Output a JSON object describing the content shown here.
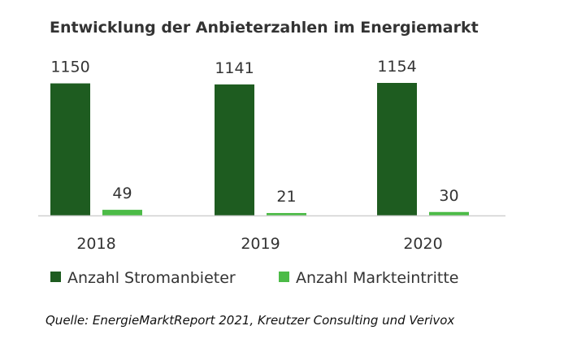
{
  "chart_data": {
    "type": "bar",
    "title": "Entwicklung der Anbieterzahlen im Energiemarkt",
    "categories": [
      "2018",
      "2019",
      "2020"
    ],
    "series": [
      {
        "name": "Anzahl Stromanbieter",
        "values": [
          1150,
          1141,
          1154
        ],
        "color": "#1e5c20"
      },
      {
        "name": "Anzahl Markteintritte",
        "values": [
          49,
          21,
          30
        ],
        "color": "#4cbb47"
      }
    ],
    "ylim": [
      0,
      1154
    ],
    "grid": false,
    "legend": "bottom",
    "data_labels": true,
    "xlabel": "",
    "ylabel": ""
  },
  "source": "Quelle: EnergieMarktReport 2021, Kreutzer Consulting und Verivox"
}
